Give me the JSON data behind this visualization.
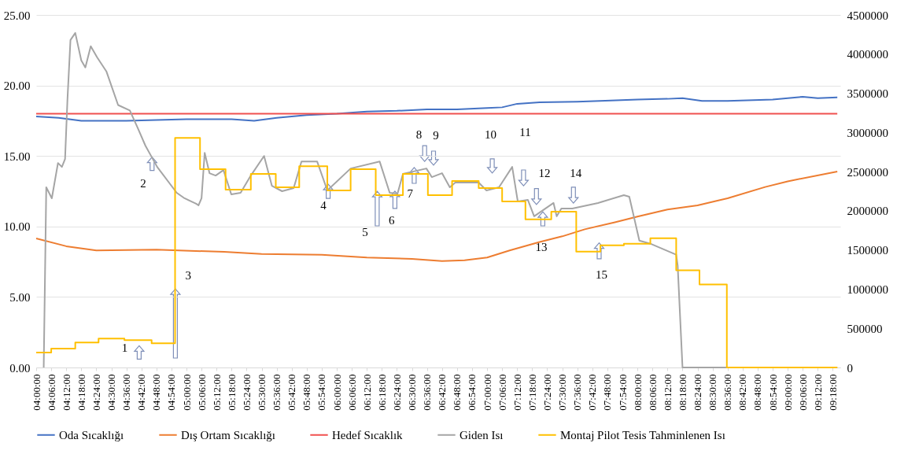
{
  "chart_data": {
    "type": "line",
    "legend": "bottom",
    "grid": "y",
    "xlim": [
      4,
      9.35
    ],
    "xticks": [
      {
        "value": 4.0,
        "label": "04:00:00"
      },
      {
        "value": 4.1,
        "label": "04:06:00"
      },
      {
        "value": 4.2,
        "label": "04:12:00"
      },
      {
        "value": 4.3,
        "label": "04:18:00"
      },
      {
        "value": 4.4,
        "label": "04:24:00"
      },
      {
        "value": 4.5,
        "label": "04:30:00"
      },
      {
        "value": 4.6,
        "label": "04:36:00"
      },
      {
        "value": 4.7,
        "label": "04:42:00"
      },
      {
        "value": 4.8,
        "label": "04:48:00"
      },
      {
        "value": 4.9,
        "label": "04:54:00"
      },
      {
        "value": 5.0,
        "label": "05:00:00"
      },
      {
        "value": 5.1,
        "label": "05:06:00"
      },
      {
        "value": 5.2,
        "label": "05:12:00"
      },
      {
        "value": 5.3,
        "label": "05:18:00"
      },
      {
        "value": 5.4,
        "label": "05:24:00"
      },
      {
        "value": 5.5,
        "label": "05:30:00"
      },
      {
        "value": 5.6,
        "label": "05:36:00"
      },
      {
        "value": 5.7,
        "label": "05:42:00"
      },
      {
        "value": 5.8,
        "label": "05:48:00"
      },
      {
        "value": 5.9,
        "label": "05:54:00"
      },
      {
        "value": 6.0,
        "label": "06:00:00"
      },
      {
        "value": 6.1,
        "label": "06:06:00"
      },
      {
        "value": 6.2,
        "label": "06:12:00"
      },
      {
        "value": 6.3,
        "label": "06:18:00"
      },
      {
        "value": 6.4,
        "label": "06:24:00"
      },
      {
        "value": 6.5,
        "label": "06:30:00"
      },
      {
        "value": 6.6,
        "label": "06:36:00"
      },
      {
        "value": 6.7,
        "label": "06:42:00"
      },
      {
        "value": 6.8,
        "label": "06:48:00"
      },
      {
        "value": 6.9,
        "label": "06:54:00"
      },
      {
        "value": 7.0,
        "label": "07:00:00"
      },
      {
        "value": 7.1,
        "label": "07:06:00"
      },
      {
        "value": 7.2,
        "label": "07:12:00"
      },
      {
        "value": 7.3,
        "label": "07:18:00"
      },
      {
        "value": 7.4,
        "label": "07:24:00"
      },
      {
        "value": 7.5,
        "label": "07:30:00"
      },
      {
        "value": 7.6,
        "label": "07:36:00"
      },
      {
        "value": 7.7,
        "label": "07:42:00"
      },
      {
        "value": 7.8,
        "label": "07:48:00"
      },
      {
        "value": 7.9,
        "label": "07:54:00"
      },
      {
        "value": 8.0,
        "label": "08:00:00"
      },
      {
        "value": 8.1,
        "label": "08:06:00"
      },
      {
        "value": 8.2,
        "label": "08:12:00"
      },
      {
        "value": 8.3,
        "label": "08:18:00"
      },
      {
        "value": 8.4,
        "label": "08:24:00"
      },
      {
        "value": 8.5,
        "label": "08:30:00"
      },
      {
        "value": 8.6,
        "label": "08:36:00"
      },
      {
        "value": 8.7,
        "label": "08:42:00"
      },
      {
        "value": 8.8,
        "label": "08:48:00"
      },
      {
        "value": 8.9,
        "label": "08:54:00"
      },
      {
        "value": 9.0,
        "label": "09:00:00"
      },
      {
        "value": 9.1,
        "label": "09:06:00"
      },
      {
        "value": 9.2,
        "label": "09:12:00"
      },
      {
        "value": 9.3,
        "label": "09:18:00"
      }
    ],
    "ylim": [
      0,
      25
    ],
    "yticks": [
      {
        "value": 0,
        "label": "0.00"
      },
      {
        "value": 5,
        "label": "5.00"
      },
      {
        "value": 10,
        "label": "10.00"
      },
      {
        "value": 15,
        "label": "15.00"
      },
      {
        "value": 20,
        "label": "20.00"
      },
      {
        "value": 25,
        "label": "25.00"
      }
    ],
    "y2lim": [
      0,
      4500000
    ],
    "y2ticks": [
      0,
      500000,
      1000000,
      1500000,
      2000000,
      2500000,
      3000000,
      3500000,
      4000000,
      4500000
    ],
    "series": [
      {
        "name": "Oda Sıcaklığı",
        "color": "#4472c4",
        "x": [
          4.0,
          4.15,
          4.3,
          4.6,
          5.0,
          5.3,
          5.45,
          5.6,
          5.8,
          6.0,
          6.2,
          6.4,
          6.6,
          6.8,
          7.0,
          7.1,
          7.2,
          7.35,
          7.6,
          7.75,
          8.0,
          8.2,
          8.3,
          8.43,
          8.6,
          8.9,
          9.1,
          9.2,
          9.33
        ],
        "values": [
          17.8,
          17.7,
          17.5,
          17.5,
          17.6,
          17.6,
          17.5,
          17.7,
          17.9,
          18.0,
          18.15,
          18.2,
          18.3,
          18.3,
          18.4,
          18.45,
          18.7,
          18.8,
          18.85,
          18.9,
          19.0,
          19.05,
          19.1,
          18.9,
          18.9,
          19.0,
          19.2,
          19.1,
          19.15
        ]
      },
      {
        "name": "Dış Ortam Sıcaklığı",
        "color": "#ed7d31",
        "x": [
          4.0,
          4.2,
          4.4,
          4.8,
          5.25,
          5.5,
          5.9,
          6.2,
          6.5,
          6.7,
          6.85,
          7.0,
          7.15,
          7.35,
          7.5,
          7.65,
          7.85,
          8.0,
          8.2,
          8.4,
          8.6,
          8.85,
          9.0,
          9.33
        ],
        "values": [
          9.15,
          8.6,
          8.3,
          8.35,
          8.2,
          8.05,
          8.0,
          7.8,
          7.7,
          7.55,
          7.6,
          7.8,
          8.3,
          8.9,
          9.3,
          9.8,
          10.3,
          10.7,
          11.2,
          11.5,
          12.0,
          12.8,
          13.2,
          13.9
        ]
      },
      {
        "name": "Hedef Sıcaklık",
        "color": "#f0504f",
        "x": [
          4.0,
          9.33
        ],
        "values": [
          18.0,
          18.0
        ]
      },
      {
        "name": "Giden Isı",
        "color": "#a5a5a5",
        "axis": "y2",
        "x": [
          4.05,
          4.067,
          4.104,
          4.145,
          4.171,
          4.192,
          4.208,
          4.228,
          4.26,
          4.3,
          4.327,
          4.363,
          4.405,
          4.467,
          4.545,
          4.623,
          4.675,
          4.727,
          4.805,
          4.935,
          4.987,
          5.064,
          5.08,
          5.1,
          5.121,
          5.153,
          5.194,
          5.246,
          5.298,
          5.36,
          5.428,
          5.516,
          5.568,
          5.636,
          5.713,
          5.765,
          5.869,
          5.937,
          6.092,
          6.285,
          6.352,
          6.404,
          6.44,
          6.596,
          6.632,
          6.7,
          6.752,
          6.788,
          6.944,
          6.996,
          7.079,
          7.167,
          7.204,
          7.271,
          7.313,
          7.442,
          7.463,
          7.494,
          7.567,
          7.738,
          7.91,
          7.946,
          8.013,
          8.086,
          8.258,
          8.268,
          8.3,
          9.33
        ],
        "values": [
          0,
          2300000,
          2160000,
          2610000,
          2560000,
          2660000,
          3420000,
          4180000,
          4270000,
          3920000,
          3830000,
          4100000,
          3960000,
          3780000,
          3350000,
          3280000,
          3060000,
          2830000,
          2560000,
          2230000,
          2160000,
          2090000,
          2070000,
          2160000,
          2740000,
          2480000,
          2450000,
          2520000,
          2210000,
          2230000,
          2450000,
          2700000,
          2320000,
          2250000,
          2290000,
          2630000,
          2630000,
          2260000,
          2540000,
          2630000,
          2230000,
          2220000,
          2470000,
          2540000,
          2430000,
          2480000,
          2300000,
          2360000,
          2360000,
          2260000,
          2300000,
          2560000,
          2120000,
          2140000,
          1930000,
          2100000,
          1930000,
          2030000,
          2030000,
          2100000,
          2200000,
          2180000,
          1620000,
          1580000,
          1440000,
          1300000,
          0,
          0
        ]
      },
      {
        "name": "Montaj Pilot Tesis Tahminlenen Isı",
        "color": "#ffc000",
        "axis": "y2",
        "type": "step",
        "x": [
          4.0,
          4.1,
          4.26,
          4.415,
          4.587,
          4.768,
          4.924,
          5.09,
          5.26,
          5.428,
          5.594,
          5.75,
          5.937,
          6.092,
          6.259,
          6.44,
          6.606,
          6.767,
          6.944,
          7.1,
          7.255,
          7.427,
          7.593,
          7.754,
          7.91,
          8.086,
          8.258,
          8.413,
          8.595,
          9.33
        ],
        "values": [
          190000,
          240000,
          320000,
          370000,
          350000,
          310000,
          2930000,
          2530000,
          2270000,
          2470000,
          2300000,
          2570000,
          2260000,
          2530000,
          2200000,
          2470000,
          2200000,
          2380000,
          2290000,
          2120000,
          1890000,
          1990000,
          1480000,
          1560000,
          1580000,
          1650000,
          1240000,
          1060000,
          0,
          0
        ]
      }
    ],
    "annotations": [
      "1",
      "2",
      "3",
      "4",
      "5",
      "6",
      "7",
      "8",
      "9",
      "10",
      "11",
      "12",
      "13",
      "14",
      "15"
    ]
  }
}
